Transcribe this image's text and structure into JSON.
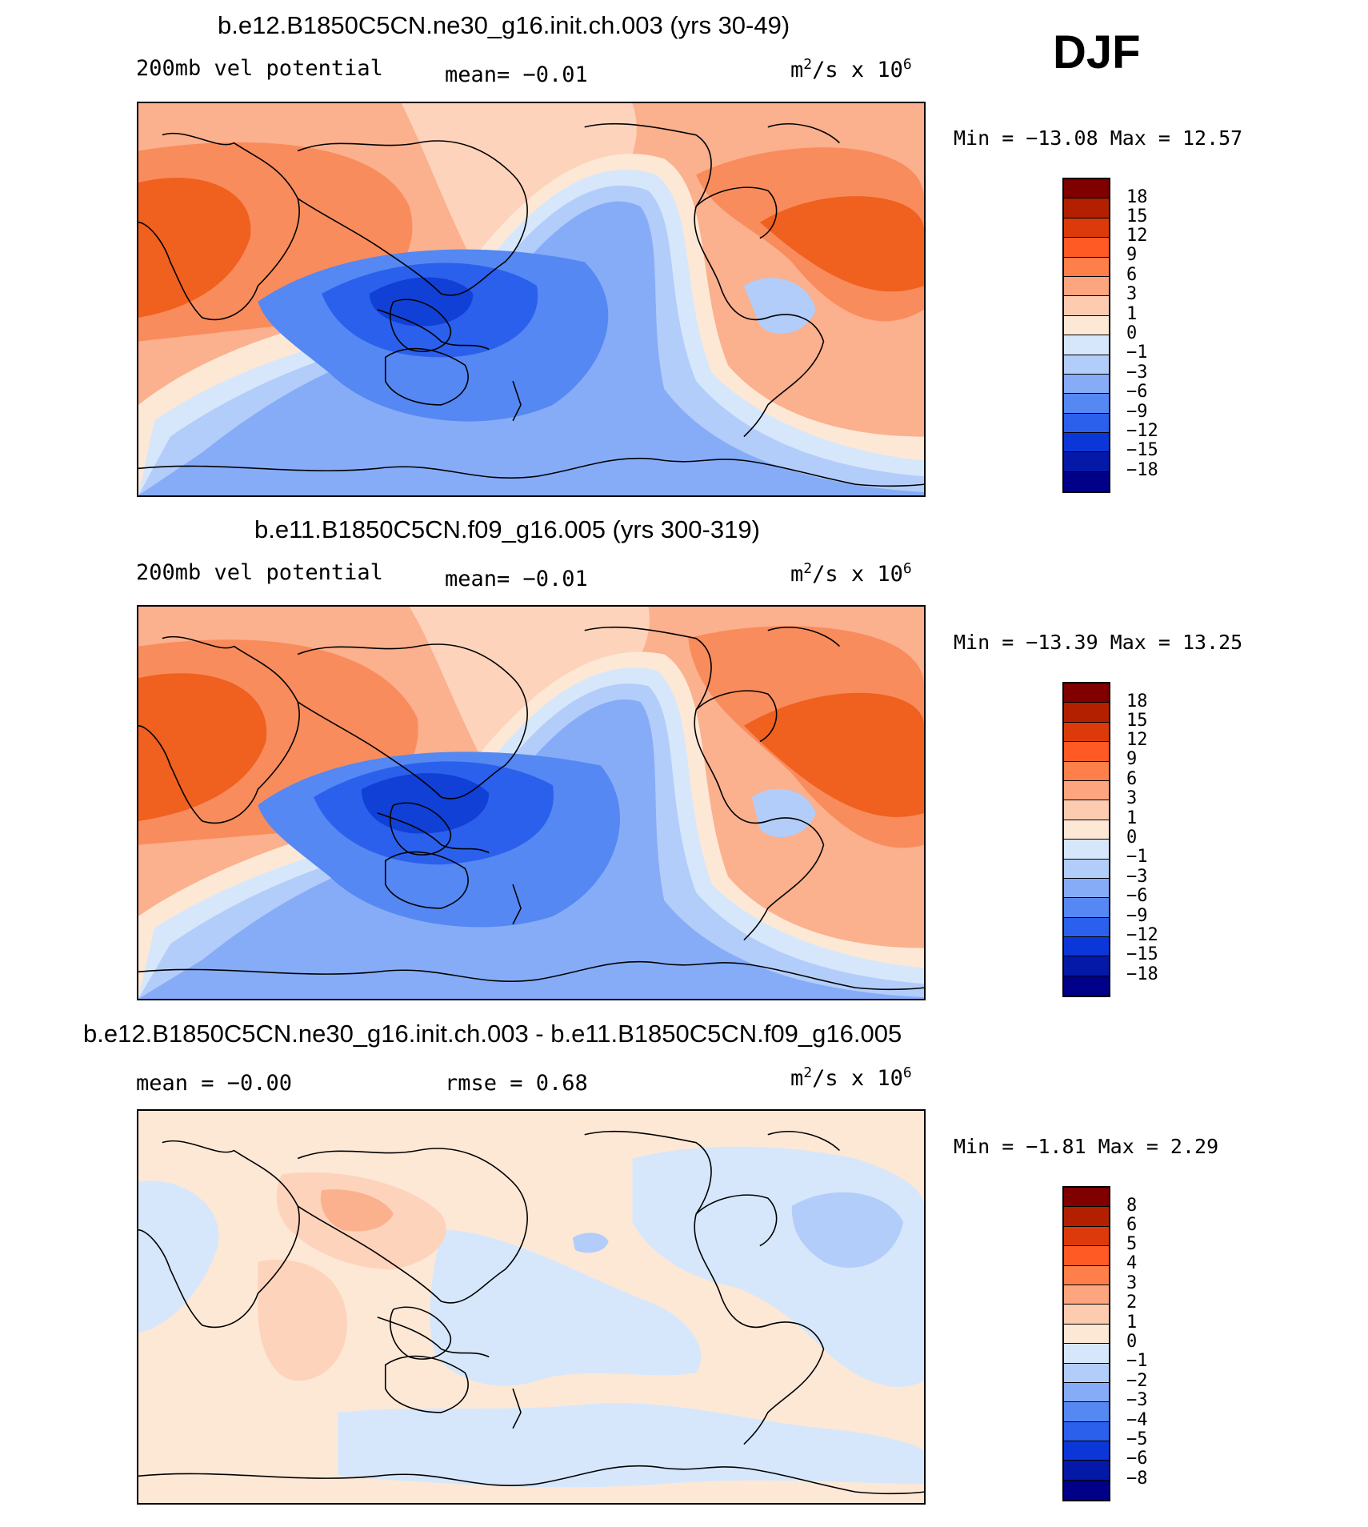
{
  "season": "DJF",
  "units_base": "m",
  "units_exp": "2",
  "units_mid": "/s x 10",
  "units_pow": "6",
  "panels": [
    {
      "title": "b.e12.B1850C5CN.ne30_g16.init.ch.003 (yrs 30-49)",
      "left_label": "200mb vel potential",
      "mid_label": "mean=  −0.01",
      "minmax": "Min = −13.08 Max =   12.57",
      "levels": [
        "18",
        "15",
        "12",
        "9",
        "6",
        "3",
        "1",
        "0",
        "−1",
        "−3",
        "−6",
        "−9",
        "−12",
        "−15",
        "−18"
      ]
    },
    {
      "title": "b.e11.B1850C5CN.f09_g16.005 (yrs 300-319)",
      "left_label": "200mb vel potential",
      "mid_label": "mean=  −0.01",
      "minmax": "Min = −13.39 Max =   13.25",
      "levels": [
        "18",
        "15",
        "12",
        "9",
        "6",
        "3",
        "1",
        "0",
        "−1",
        "−3",
        "−6",
        "−9",
        "−12",
        "−15",
        "−18"
      ]
    },
    {
      "title": "b.e12.B1850C5CN.ne30_g16.init.ch.003 - b.e11.B1850C5CN.f09_g16.005",
      "left_label": "mean =  −0.00",
      "mid_label": "rmse =   0.68",
      "minmax": "Min =  −1.81 Max =   2.29",
      "levels": [
        "8",
        "6",
        "5",
        "4",
        "3",
        "2",
        "1",
        "0",
        "−1",
        "−2",
        "−3",
        "−4",
        "−5",
        "−6",
        "−8"
      ]
    }
  ],
  "colorbar_colors": [
    "#800000",
    "#b22000",
    "#dd3a0b",
    "#ff5a23",
    "#ff7f4a",
    "#fda57f",
    "#fdcbb0",
    "#fde8d6",
    "#d6e7fb",
    "#b3cdfa",
    "#87acf7",
    "#5588f2",
    "#2a60ec",
    "#0c37d8",
    "#0419a8",
    "#000088"
  ],
  "colors": {
    "red_strong": "#f0601f",
    "red_mid": "#f98c5c",
    "red_light": "#fbb08e",
    "pink": "#fdd3bb",
    "cream": "#fde8d6",
    "blue_vlight": "#d6e7fb",
    "blue_light": "#b3cdfa",
    "blue_mid": "#87acf7",
    "blue": "#5588f2",
    "blue_dark": "#2a60ec",
    "blue_deep": "#1040d6"
  }
}
